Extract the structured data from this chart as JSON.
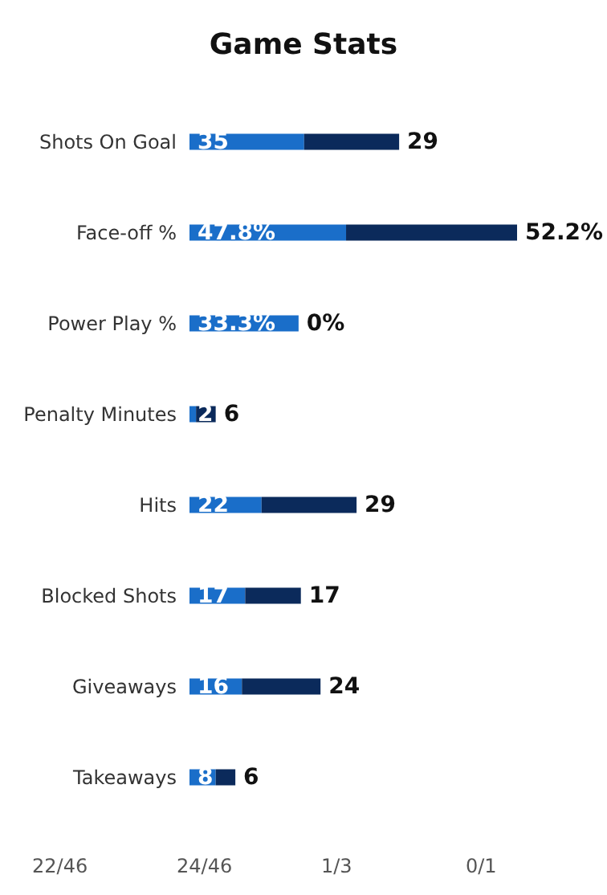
{
  "chart_data": {
    "type": "bar",
    "title": "Game Stats",
    "orientation": "horizontal",
    "stacked": true,
    "categories": [
      "Shots On Goal",
      "Face-off %",
      "Power Play %",
      "Penalty Minutes",
      "Hits",
      "Blocked Shots",
      "Giveaways",
      "Takeaways"
    ],
    "series": [
      {
        "color": "#1a6ec9",
        "values": [
          35,
          47.8,
          33.3,
          2,
          22,
          17,
          16,
          8
        ],
        "value_labels": [
          "35",
          "47.8%",
          "33.3%",
          "2",
          "22",
          "17",
          "16",
          "8"
        ]
      },
      {
        "color": "#0b2a5b",
        "values": [
          29,
          52.2,
          0,
          6,
          29,
          17,
          24,
          6
        ],
        "value_labels": [
          "29",
          "52.2%",
          "0%",
          "6",
          "29",
          "17",
          "24",
          "6"
        ]
      }
    ],
    "xlim": [
      0,
      100
    ],
    "tick_labels": "y",
    "grid": false,
    "annotations": [
      "22/46",
      "24/46",
      "1/3",
      "0/1"
    ]
  }
}
